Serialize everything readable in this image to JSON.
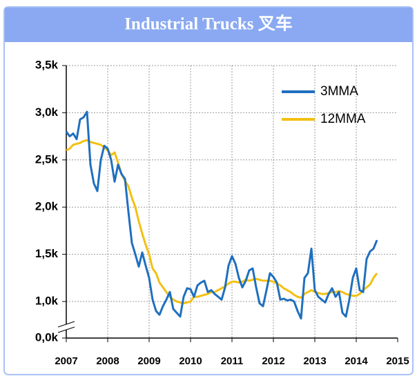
{
  "chart_data": {
    "type": "line",
    "title": "Industrial Trucks 叉车",
    "x": [
      2007,
      2007.083,
      2007.167,
      2007.25,
      2007.333,
      2007.417,
      2007.5,
      2007.583,
      2007.667,
      2007.75,
      2007.833,
      2007.917,
      2008,
      2008.083,
      2008.167,
      2008.25,
      2008.333,
      2008.417,
      2008.5,
      2008.583,
      2008.667,
      2008.75,
      2008.833,
      2008.917,
      2009,
      2009.083,
      2009.167,
      2009.25,
      2009.333,
      2009.417,
      2009.5,
      2009.583,
      2009.667,
      2009.75,
      2009.833,
      2009.917,
      2010,
      2010.083,
      2010.167,
      2010.25,
      2010.333,
      2010.417,
      2010.5,
      2010.583,
      2010.667,
      2010.75,
      2010.833,
      2010.917,
      2011,
      2011.083,
      2011.167,
      2011.25,
      2011.333,
      2011.417,
      2011.5,
      2011.583,
      2011.667,
      2011.75,
      2011.833,
      2011.917,
      2012,
      2012.083,
      2012.167,
      2012.25,
      2012.333,
      2012.417,
      2012.5,
      2012.583,
      2012.667,
      2012.75,
      2012.833,
      2012.917,
      2013,
      2013.083,
      2013.167,
      2013.25,
      2013.333,
      2013.417,
      2013.5,
      2013.583,
      2013.667,
      2013.75,
      2013.833,
      2013.917,
      2014,
      2014.083,
      2014.167,
      2014.25,
      2014.333,
      2014.417,
      2014.5
    ],
    "series": [
      {
        "name": "3MMA",
        "color": "#1f6fbf",
        "values": [
          2800,
          2750,
          2780,
          2720,
          2930,
          2950,
          3010,
          2450,
          2250,
          2170,
          2500,
          2650,
          2620,
          2500,
          2270,
          2450,
          2350,
          2300,
          1950,
          1620,
          1500,
          1370,
          1520,
          1380,
          1250,
          1020,
          900,
          860,
          950,
          1020,
          1100,
          920,
          880,
          840,
          1050,
          1140,
          1130,
          1050,
          1170,
          1200,
          1220,
          1100,
          1120,
          1080,
          1050,
          1020,
          1150,
          1380,
          1480,
          1400,
          1250,
          1150,
          1220,
          1330,
          1350,
          1150,
          980,
          950,
          1120,
          1300,
          1260,
          1200,
          1020,
          1030,
          1010,
          1020,
          1000,
          900,
          820,
          1250,
          1300,
          1560,
          1120,
          1050,
          1020,
          990,
          1080,
          1140,
          1050,
          1100,
          880,
          840,
          1020,
          1250,
          1350,
          1120,
          1100,
          1450,
          1530,
          1560,
          1650
        ]
      },
      {
        "name": "12MMA",
        "color": "#f2c011",
        "values": [
          2600,
          2620,
          2660,
          2670,
          2680,
          2700,
          2710,
          2690,
          2680,
          2670,
          2660,
          2630,
          2600,
          2550,
          2580,
          2470,
          2350,
          2280,
          2220,
          2100,
          2000,
          1850,
          1720,
          1600,
          1500,
          1350,
          1300,
          1200,
          1150,
          1100,
          1050,
          1020,
          1000,
          990,
          980,
          990,
          1000,
          1050,
          1050,
          1060,
          1070,
          1080,
          1100,
          1100,
          1120,
          1140,
          1160,
          1190,
          1210,
          1210,
          1200,
          1210,
          1230,
          1220,
          1230,
          1240,
          1230,
          1220,
          1220,
          1220,
          1210,
          1190,
          1170,
          1140,
          1120,
          1100,
          1070,
          1050,
          1040,
          1080,
          1100,
          1120,
          1100,
          1090,
          1080,
          1080,
          1090,
          1100,
          1100,
          1110,
          1100,
          1080,
          1070,
          1060,
          1060,
          1080,
          1120,
          1150,
          1180,
          1250,
          1300
        ]
      }
    ],
    "xlim": [
      2007,
      2015
    ],
    "xticks": [
      2007,
      2008,
      2009,
      2010,
      2011,
      2012,
      2013,
      2014,
      2015
    ],
    "ylim": [
      0,
      3500
    ],
    "yticks": [
      {
        "value": 0,
        "label": "0,0k"
      },
      {
        "value": 1000,
        "label": "1,0k"
      },
      {
        "value": 1500,
        "label": "1,5k"
      },
      {
        "value": 2000,
        "label": "2,0k"
      },
      {
        "value": 2500,
        "label": "2,5k"
      },
      {
        "value": 3000,
        "label": "3,0k"
      },
      {
        "value": 3500,
        "label": "3,5k"
      }
    ],
    "grid": true,
    "legend": "upper right"
  }
}
